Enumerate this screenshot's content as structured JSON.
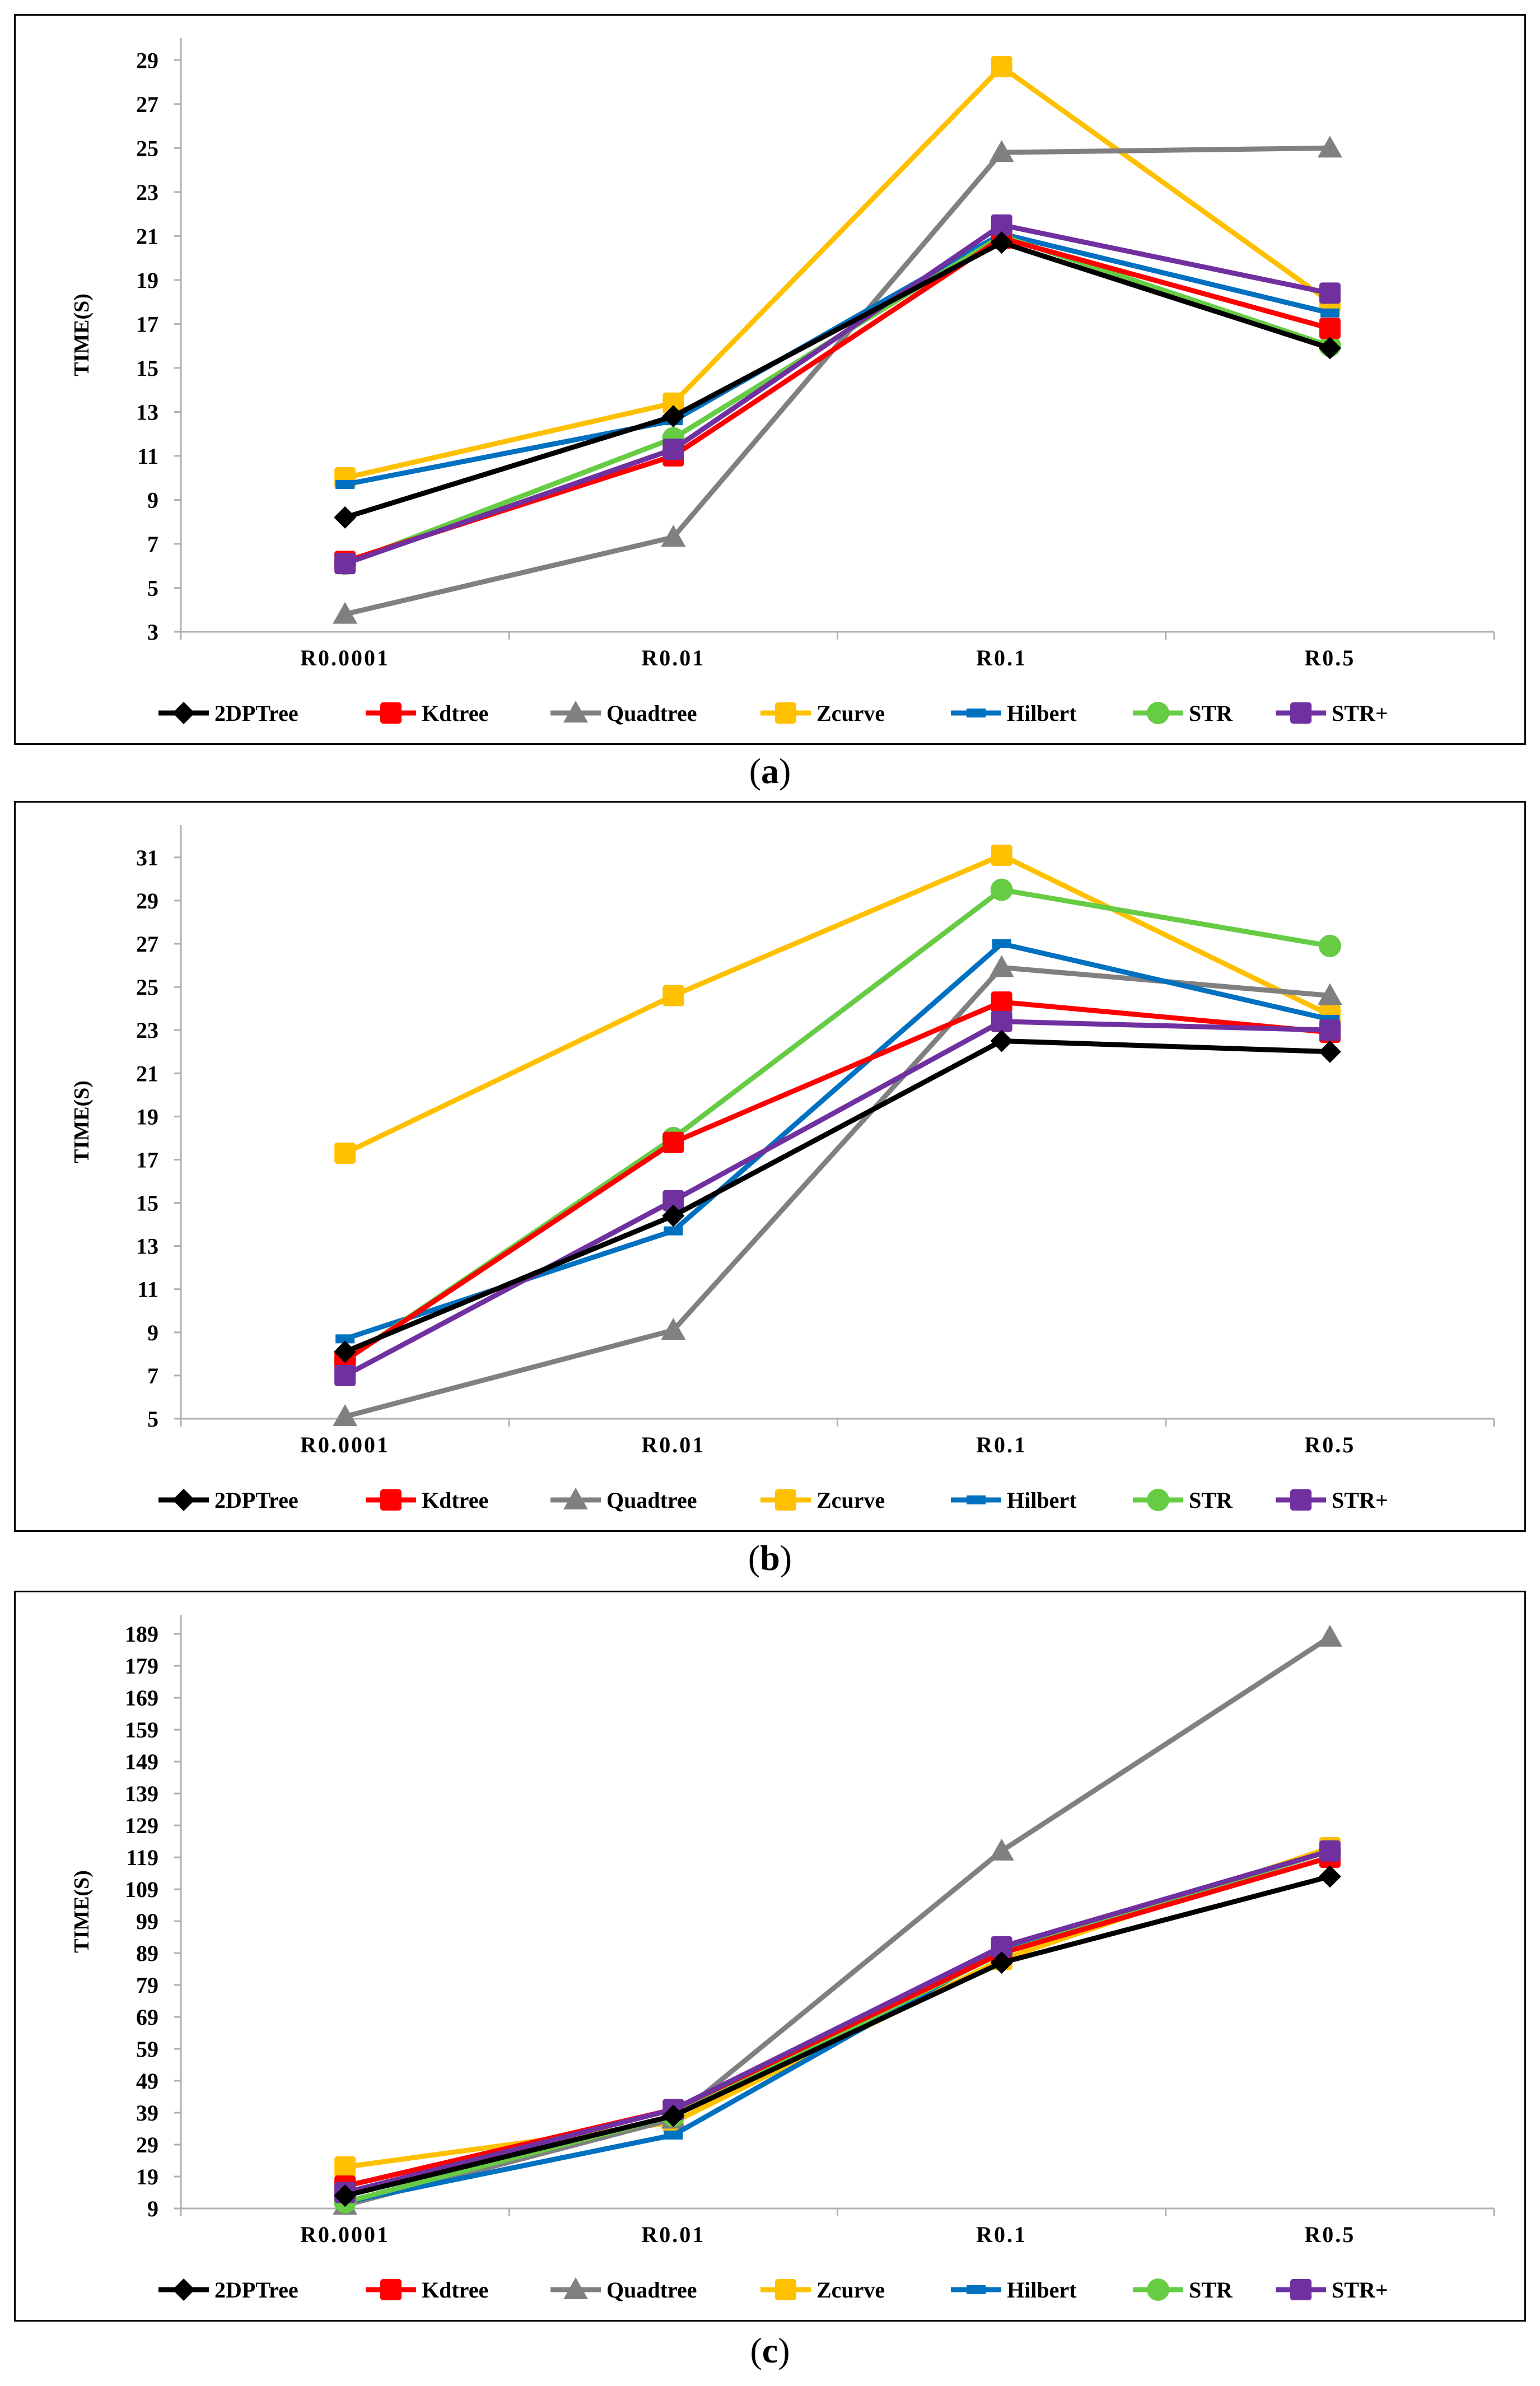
{
  "figure": {
    "captions": [
      "a",
      "b",
      "c"
    ]
  },
  "series_styles": [
    {
      "name": "2DPTree",
      "color": "#000000",
      "marker": "diamond"
    },
    {
      "name": "Kdtree",
      "color": "#ff0000",
      "marker": "square"
    },
    {
      "name": "Quadtree",
      "color": "#808080",
      "marker": "triangle"
    },
    {
      "name": "Zcurve",
      "color": "#ffc000",
      "marker": "square"
    },
    {
      "name": "Hilbert",
      "color": "#0070c0",
      "marker": "dash"
    },
    {
      "name": "STR",
      "color": "#66cc44",
      "marker": "circle"
    },
    {
      "name": "STR+",
      "color": "#7030a0",
      "marker": "square"
    }
  ],
  "chart_data": [
    {
      "type": "line",
      "title": "",
      "ylabel": "TIME(S)",
      "xlabel": "",
      "categories": [
        "R0.0001",
        "R0.01",
        "R0.1",
        "R0.5"
      ],
      "ylim": [
        3,
        30
      ],
      "yticks": [
        3,
        5,
        7,
        9,
        11,
        13,
        15,
        17,
        19,
        21,
        23,
        25,
        27,
        29
      ],
      "series": [
        {
          "name": "2DPTree",
          "values": [
            8.2,
            12.8,
            20.7,
            15.9
          ]
        },
        {
          "name": "Kdtree",
          "values": [
            6.2,
            11.0,
            20.9,
            16.8
          ]
        },
        {
          "name": "Quadtree",
          "values": [
            3.8,
            7.3,
            24.8,
            25.0
          ]
        },
        {
          "name": "Zcurve",
          "values": [
            10.0,
            13.4,
            28.7,
            18.0
          ]
        },
        {
          "name": "Hilbert",
          "values": [
            9.7,
            12.6,
            21.1,
            17.5
          ]
        },
        {
          "name": "STR",
          "values": [
            6.1,
            11.8,
            21.0,
            16.0
          ]
        },
        {
          "name": "STR+",
          "values": [
            6.1,
            11.3,
            21.5,
            18.4
          ]
        }
      ]
    },
    {
      "type": "line",
      "title": "",
      "ylabel": "TIME(S)",
      "xlabel": "",
      "categories": [
        "R0.0001",
        "R0.01",
        "R0.1",
        "R0.5"
      ],
      "ylim": [
        5,
        32.5
      ],
      "yticks": [
        5,
        7,
        9,
        11,
        13,
        15,
        17,
        19,
        21,
        23,
        25,
        27,
        29,
        31
      ],
      "series": [
        {
          "name": "2DPTree",
          "values": [
            8.1,
            14.4,
            22.5,
            22.0
          ]
        },
        {
          "name": "Kdtree",
          "values": [
            7.7,
            17.8,
            24.3,
            22.9
          ]
        },
        {
          "name": "Quadtree",
          "values": [
            5.1,
            9.1,
            25.9,
            24.6
          ]
        },
        {
          "name": "Zcurve",
          "values": [
            17.3,
            24.6,
            31.1,
            23.7
          ]
        },
        {
          "name": "Hilbert",
          "values": [
            8.7,
            13.7,
            27.0,
            23.5
          ]
        },
        {
          "name": "STR",
          "values": [
            7.7,
            18.0,
            29.5,
            26.9
          ]
        },
        {
          "name": "STR+",
          "values": [
            7.0,
            15.1,
            23.4,
            23.0
          ]
        }
      ]
    },
    {
      "type": "line",
      "title": "",
      "ylabel": "TIME(S)",
      "xlabel": "",
      "categories": [
        "R0.0001",
        "R0.01",
        "R0.1",
        "R0.5"
      ],
      "ylim": [
        9,
        195
      ],
      "yticks": [
        9,
        19,
        29,
        39,
        49,
        59,
        69,
        79,
        89,
        99,
        109,
        119,
        129,
        139,
        149,
        159,
        169,
        179,
        189
      ],
      "series": [
        {
          "name": "2DPTree",
          "values": [
            13,
            38,
            86,
            113
          ]
        },
        {
          "name": "Kdtree",
          "values": [
            16,
            40,
            89,
            119
          ]
        },
        {
          "name": "Quadtree",
          "values": [
            10,
            37,
            121,
            188
          ]
        },
        {
          "name": "Zcurve",
          "values": [
            22,
            36,
            87,
            122
          ]
        },
        {
          "name": "Hilbert",
          "values": [
            11,
            32,
            90,
            121
          ]
        },
        {
          "name": "STR",
          "values": [
            11,
            38,
            89,
            121
          ]
        },
        {
          "name": "STR+",
          "values": [
            14,
            40,
            91,
            121
          ]
        }
      ]
    }
  ]
}
